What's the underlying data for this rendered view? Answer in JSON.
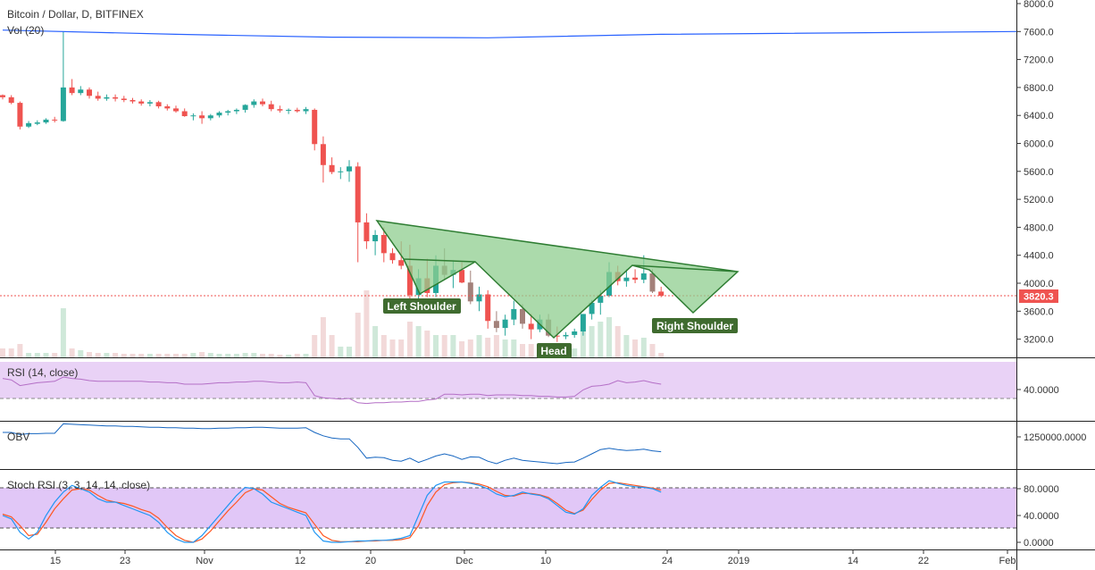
{
  "header": {
    "title": "Bitcoin / Dollar, D, BITFINEX",
    "vol_label": "Vol (20)"
  },
  "colors": {
    "bull": "#26a69a",
    "bear": "#ef5350",
    "bull_muted": "#a3817a",
    "pattern_fill": "#8fce8f",
    "pattern_stroke": "#2e7d32",
    "label_bg": "#3f6b2f",
    "ma_line": "#2962ff",
    "price_line": "#ef5350",
    "rsi_line": "#b46fc6",
    "rsi_band": "#e9d2f6",
    "obv_line": "#1565c0",
    "stoch_k": "#2196f3",
    "stoch_d": "#ff5722",
    "stoch_band": "#e1c7f7"
  },
  "price_tag": "3820.3",
  "panes": {
    "rsi": {
      "label": "RSI (14, close)",
      "tick": "40.0000"
    },
    "obv": {
      "label": "OBV",
      "tick": "1250000.0000"
    },
    "stoch": {
      "label": "Stoch RSI (3, 3, 14, 14, close)",
      "ticks": [
        "80.0000",
        "40.0000",
        "0.0000"
      ]
    }
  },
  "annotations": {
    "left_shoulder": "Left Shoulder",
    "head": "Head",
    "right_shoulder": "Right Shoulder"
  },
  "chart_data": {
    "type": "candlestick",
    "title": "Bitcoin / Dollar, D, BITFINEX",
    "y_ticks": [
      "8000.0",
      "7600.0",
      "7200.0",
      "6800.0",
      "6400.0",
      "6000.0",
      "5600.0",
      "5200.0",
      "4800.0",
      "4400.0",
      "4000.0",
      "3600.0",
      "3200.0"
    ],
    "x_ticks": [
      "15",
      "23",
      "Nov",
      "12",
      "20",
      "Dec",
      "10",
      "24",
      "2019",
      "14",
      "22",
      "Feb"
    ],
    "ylim": [
      2950,
      8050
    ],
    "last_price": 3820.3,
    "pattern": "inverse head and shoulders",
    "candles": [
      [
        6690,
        6700,
        6630,
        6660
      ],
      [
        6660,
        6690,
        6560,
        6580
      ],
      [
        6580,
        6600,
        6200,
        6240
      ],
      [
        6240,
        6320,
        6220,
        6290
      ],
      [
        6280,
        6330,
        6260,
        6300
      ],
      [
        6300,
        6360,
        6280,
        6340
      ],
      [
        6340,
        6380,
        6300,
        6330
      ],
      [
        6320,
        7600,
        6310,
        6800
      ],
      [
        6800,
        6920,
        6690,
        6720
      ],
      [
        6720,
        6820,
        6690,
        6770
      ],
      [
        6770,
        6800,
        6640,
        6680
      ],
      [
        6680,
        6740,
        6610,
        6640
      ],
      [
        6640,
        6700,
        6610,
        6660
      ],
      [
        6660,
        6700,
        6600,
        6640
      ],
      [
        6640,
        6680,
        6590,
        6620
      ],
      [
        6620,
        6650,
        6570,
        6600
      ],
      [
        6600,
        6630,
        6540,
        6570
      ],
      [
        6570,
        6620,
        6530,
        6590
      ],
      [
        6590,
        6610,
        6500,
        6530
      ],
      [
        6530,
        6560,
        6470,
        6500
      ],
      [
        6500,
        6540,
        6440,
        6460
      ],
      [
        6460,
        6500,
        6380,
        6390
      ],
      [
        6390,
        6430,
        6330,
        6400
      ],
      [
        6400,
        6460,
        6280,
        6360
      ],
      [
        6360,
        6420,
        6330,
        6400
      ],
      [
        6400,
        6460,
        6370,
        6440
      ],
      [
        6440,
        6480,
        6400,
        6460
      ],
      [
        6460,
        6500,
        6420,
        6480
      ],
      [
        6480,
        6560,
        6440,
        6550
      ],
      [
        6550,
        6630,
        6510,
        6600
      ],
      [
        6600,
        6640,
        6530,
        6560
      ],
      [
        6560,
        6610,
        6460,
        6490
      ],
      [
        6490,
        6540,
        6440,
        6470
      ],
      [
        6470,
        6500,
        6420,
        6480
      ],
      [
        6480,
        6510,
        6440,
        6460
      ],
      [
        6460,
        6520,
        6420,
        6490
      ],
      [
        6480,
        6500,
        5900,
        5990
      ],
      [
        5990,
        6100,
        5440,
        5690
      ],
      [
        5690,
        5800,
        5560,
        5590
      ],
      [
        5590,
        5660,
        5490,
        5600
      ],
      [
        5600,
        5760,
        5450,
        5670
      ],
      [
        5670,
        5730,
        4300,
        4870
      ],
      [
        4870,
        5000,
        4490,
        4600
      ],
      [
        4600,
        4760,
        4400,
        4690
      ],
      [
        4690,
        4800,
        4300,
        4430
      ],
      [
        4430,
        4500,
        4280,
        4330
      ],
      [
        4330,
        4600,
        4200,
        4250
      ],
      [
        4250,
        4550,
        3700,
        3830
      ],
      [
        3830,
        4200,
        3680,
        4070
      ],
      [
        4070,
        4350,
        3800,
        3860
      ],
      [
        3860,
        4400,
        3800,
        4250
      ],
      [
        4250,
        4500,
        4050,
        4120
      ],
      [
        4120,
        4320,
        3930,
        4190
      ],
      [
        4190,
        4300,
        4000,
        4010
      ],
      [
        4010,
        4180,
        3700,
        3740
      ],
      [
        3740,
        3950,
        3600,
        3840
      ],
      [
        3840,
        3900,
        3350,
        3460
      ],
      [
        3460,
        3600,
        3300,
        3360
      ],
      [
        3360,
        3550,
        3250,
        3480
      ],
      [
        3480,
        3750,
        3400,
        3630
      ],
      [
        3630,
        3700,
        3350,
        3420
      ],
      [
        3420,
        3560,
        3200,
        3340
      ],
      [
        3340,
        3550,
        3300,
        3480
      ],
      [
        3480,
        3560,
        3230,
        3250
      ],
      [
        3250,
        3380,
        3160,
        3240
      ],
      [
        3240,
        3300,
        3200,
        3260
      ],
      [
        3260,
        3350,
        3220,
        3310
      ],
      [
        3310,
        3560,
        3250,
        3560
      ],
      [
        3560,
        3760,
        3480,
        3720
      ],
      [
        3720,
        3900,
        3550,
        3820
      ],
      [
        3820,
        4300,
        3800,
        4160
      ],
      [
        4160,
        4250,
        3970,
        4030
      ],
      [
        4030,
        4200,
        3950,
        4080
      ],
      [
        4080,
        4200,
        4000,
        4050
      ],
      [
        4050,
        4400,
        4000,
        4140
      ],
      [
        4140,
        4200,
        3860,
        3880
      ],
      [
        3880,
        3950,
        3800,
        3820
      ]
    ],
    "volume": [
      0.1,
      0.1,
      0.15,
      0.05,
      0.05,
      0.05,
      0.05,
      0.55,
      0.1,
      0.08,
      0.06,
      0.05,
      0.05,
      0.05,
      0.04,
      0.04,
      0.04,
      0.04,
      0.04,
      0.04,
      0.04,
      0.04,
      0.05,
      0.06,
      0.05,
      0.04,
      0.04,
      0.04,
      0.05,
      0.05,
      0.04,
      0.04,
      0.03,
      0.03,
      0.04,
      0.04,
      0.25,
      0.45,
      0.25,
      0.12,
      0.12,
      0.5,
      0.75,
      0.35,
      0.25,
      0.2,
      0.2,
      0.4,
      0.35,
      0.3,
      0.25,
      0.25,
      0.25,
      0.18,
      0.2,
      0.25,
      0.22,
      0.25,
      0.2,
      0.2,
      0.15,
      0.15,
      0.12,
      0.1,
      0.08,
      0.08,
      0.1,
      0.3,
      0.35,
      0.4,
      0.45,
      0.35,
      0.25,
      0.2,
      0.22,
      0.15,
      0.05
    ],
    "ma_curve": [
      [
        0,
        7620
      ],
      [
        20,
        7560
      ],
      [
        38,
        7520
      ],
      [
        56,
        7510
      ],
      [
        76,
        7560
      ]
    ],
    "rsi": [
      58,
      56,
      48,
      50,
      52,
      53,
      54,
      60,
      58,
      57,
      55,
      54,
      54,
      54,
      54,
      54,
      54,
      53,
      53,
      52,
      52,
      50,
      50,
      50,
      51,
      52,
      52,
      53,
      53,
      54,
      54,
      53,
      52,
      52,
      53,
      52,
      34,
      31,
      30,
      29,
      30,
      24,
      23,
      24,
      24,
      25,
      25,
      26,
      26,
      28,
      29,
      36,
      36,
      35,
      36,
      36,
      34,
      35,
      35,
      35,
      34,
      34,
      33,
      33,
      32,
      32,
      33,
      42,
      47,
      48,
      50,
      55,
      52,
      53,
      55,
      52,
      50
    ],
    "obv": [
      55,
      55,
      50,
      52,
      52,
      53,
      53,
      75,
      74,
      73,
      72,
      71,
      70,
      70,
      69,
      69,
      68,
      67,
      67,
      66,
      66,
      65,
      65,
      64,
      64,
      65,
      65,
      66,
      66,
      67,
      67,
      66,
      65,
      65,
      65,
      66,
      55,
      47,
      42,
      40,
      40,
      20,
      -5,
      -3,
      -4,
      -10,
      -12,
      -5,
      -15,
      -8,
      0,
      5,
      0,
      -8,
      -2,
      -3,
      -12,
      -18,
      -10,
      -5,
      -10,
      -12,
      -14,
      -16,
      -18,
      -15,
      -14,
      -5,
      5,
      15,
      18,
      15,
      13,
      14,
      16,
      12,
      10
    ],
    "stoch_k": [
      40,
      35,
      15,
      5,
      15,
      40,
      60,
      75,
      85,
      80,
      75,
      65,
      60,
      60,
      55,
      50,
      45,
      40,
      30,
      15,
      5,
      0,
      0,
      10,
      25,
      40,
      55,
      70,
      82,
      80,
      72,
      60,
      55,
      50,
      45,
      40,
      15,
      2,
      0,
      0,
      1,
      2,
      2,
      3,
      3,
      4,
      6,
      10,
      40,
      70,
      85,
      90,
      90,
      90,
      88,
      85,
      80,
      72,
      68,
      70,
      75,
      72,
      70,
      65,
      55,
      45,
      42,
      50,
      70,
      82,
      92,
      88,
      85,
      83,
      82,
      80,
      75
    ],
    "stoch_d": [
      42,
      38,
      25,
      10,
      12,
      30,
      50,
      65,
      78,
      80,
      78,
      70,
      63,
      60,
      58,
      54,
      49,
      45,
      36,
      22,
      10,
      3,
      0,
      5,
      17,
      32,
      47,
      60,
      74,
      80,
      78,
      68,
      58,
      52,
      48,
      44,
      27,
      10,
      3,
      1,
      1,
      1,
      2,
      2,
      3,
      3,
      4,
      7,
      25,
      55,
      75,
      86,
      89,
      90,
      89,
      87,
      83,
      76,
      70,
      69,
      73,
      73,
      71,
      67,
      58,
      48,
      43,
      48,
      64,
      78,
      88,
      89,
      87,
      85,
      83,
      81,
      78
    ]
  }
}
